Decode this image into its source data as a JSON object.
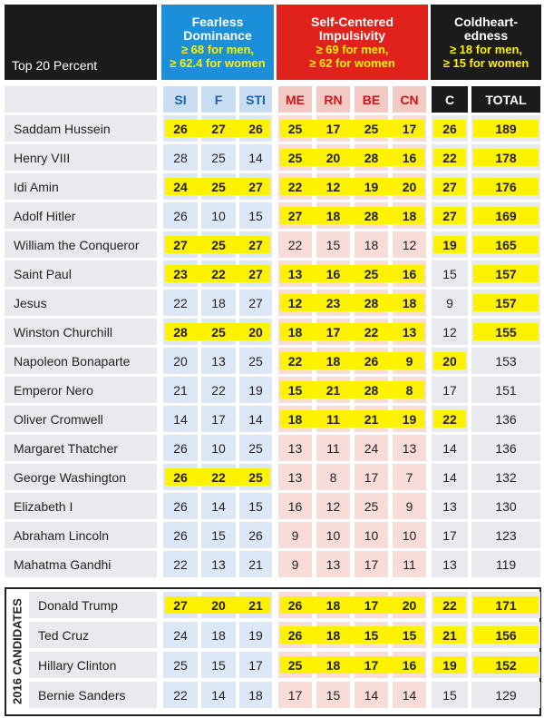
{
  "header": {
    "corner": "Top 20 Percent",
    "groups": [
      {
        "title": [
          "Fearless",
          "Dominance"
        ],
        "criteria": [
          "≥ 68 for men,",
          "≥ 62.4 for women"
        ],
        "color": "#1b8fd8",
        "light": "#dce8f5",
        "sub": "#c9def2",
        "subtext": "#1a5fa8",
        "columns": [
          "SI",
          "F",
          "STI"
        ]
      },
      {
        "title": [
          "Self-Centered",
          "Impulsivity"
        ],
        "criteria": [
          "≥ 69 for men,",
          "≥ 62 for women"
        ],
        "color": "#e1221c",
        "light": "#f7dcd8",
        "sub": "#f3c9c3",
        "subtext": "#c8191a",
        "columns": [
          "ME",
          "RN",
          "BE",
          "CN"
        ]
      },
      {
        "title": [
          "Coldheart-",
          "edness"
        ],
        "criteria": [
          "≥ 18 for men,",
          "≥ 15 for women"
        ],
        "color": "#1b1b1b",
        "light": "#e8eaed",
        "sub": "#1b1b1b",
        "subtext": "#ffffff",
        "columns": [
          "C",
          "TOTAL"
        ]
      }
    ],
    "highlight_color": "#fff200"
  },
  "table": {
    "rows": [
      {
        "name": "Saddam Hussein",
        "values": [
          26,
          27,
          26,
          25,
          17,
          25,
          17,
          26,
          189
        ],
        "highlight": [
          true,
          true,
          true,
          true
        ]
      },
      {
        "name": "Henry VIII",
        "values": [
          28,
          25,
          14,
          25,
          20,
          28,
          16,
          22,
          178
        ],
        "highlight": [
          false,
          true,
          true,
          true
        ]
      },
      {
        "name": "Idi Amin",
        "values": [
          24,
          25,
          27,
          22,
          12,
          19,
          20,
          27,
          176
        ],
        "highlight": [
          true,
          true,
          true,
          true
        ]
      },
      {
        "name": "Adolf Hitler",
        "values": [
          26,
          10,
          15,
          27,
          18,
          28,
          18,
          27,
          169
        ],
        "highlight": [
          false,
          true,
          true,
          true
        ]
      },
      {
        "name": "William the Conqueror",
        "values": [
          27,
          25,
          27,
          22,
          15,
          18,
          12,
          19,
          165
        ],
        "highlight": [
          true,
          false,
          true,
          true
        ]
      },
      {
        "name": "Saint Paul",
        "values": [
          23,
          22,
          27,
          13,
          16,
          25,
          16,
          15,
          157
        ],
        "highlight": [
          true,
          true,
          false,
          true
        ]
      },
      {
        "name": "Jesus",
        "values": [
          22,
          18,
          27,
          12,
          23,
          28,
          18,
          9,
          157
        ],
        "highlight": [
          false,
          true,
          false,
          true
        ]
      },
      {
        "name": "Winston Churchill",
        "values": [
          28,
          25,
          20,
          18,
          17,
          22,
          13,
          12,
          155
        ],
        "highlight": [
          true,
          true,
          false,
          true
        ]
      },
      {
        "name": "Napoleon Bonaparte",
        "values": [
          20,
          13,
          25,
          22,
          18,
          26,
          9,
          20,
          153
        ],
        "highlight": [
          false,
          true,
          true,
          false
        ]
      },
      {
        "name": "Emperor Nero",
        "values": [
          21,
          22,
          19,
          15,
          21,
          28,
          8,
          17,
          151
        ],
        "highlight": [
          false,
          true,
          false,
          false
        ]
      },
      {
        "name": "Oliver Cromwell",
        "values": [
          14,
          17,
          14,
          18,
          11,
          21,
          19,
          22,
          136
        ],
        "highlight": [
          false,
          true,
          true,
          false
        ]
      },
      {
        "name": "Margaret Thatcher",
        "values": [
          26,
          10,
          25,
          13,
          11,
          24,
          13,
          14,
          136
        ],
        "highlight": [
          false,
          false,
          false,
          false
        ]
      },
      {
        "name": "George Washington",
        "values": [
          26,
          22,
          25,
          13,
          8,
          17,
          7,
          14,
          132
        ],
        "highlight": [
          true,
          false,
          false,
          false
        ]
      },
      {
        "name": "Elizabeth I",
        "values": [
          26,
          14,
          15,
          16,
          12,
          25,
          9,
          13,
          130
        ],
        "highlight": [
          false,
          false,
          false,
          false
        ]
      },
      {
        "name": "Abraham Lincoln",
        "values": [
          26,
          15,
          26,
          9,
          10,
          10,
          10,
          17,
          123
        ],
        "highlight": [
          false,
          false,
          false,
          false
        ]
      },
      {
        "name": "Mahatma Gandhi",
        "values": [
          22,
          13,
          21,
          9,
          13,
          17,
          11,
          13,
          119
        ],
        "highlight": [
          false,
          false,
          false,
          false
        ]
      }
    ]
  },
  "candidates": {
    "label": "2016 CANDIDATES",
    "rows": [
      {
        "name": "Donald Trump",
        "values": [
          27,
          20,
          21,
          26,
          18,
          17,
          20,
          22,
          171
        ],
        "highlight": [
          true,
          true,
          true,
          true
        ]
      },
      {
        "name": "Ted Cruz",
        "values": [
          24,
          18,
          19,
          26,
          18,
          15,
          15,
          21,
          156
        ],
        "highlight": [
          false,
          true,
          true,
          true
        ]
      },
      {
        "name": "Hillary Clinton",
        "values": [
          25,
          15,
          17,
          25,
          18,
          17,
          16,
          19,
          152
        ],
        "highlight": [
          false,
          true,
          true,
          true
        ]
      },
      {
        "name": "Bernie Sanders",
        "values": [
          22,
          14,
          18,
          17,
          15,
          14,
          14,
          15,
          129
        ],
        "highlight": [
          false,
          false,
          false,
          false
        ]
      }
    ]
  }
}
